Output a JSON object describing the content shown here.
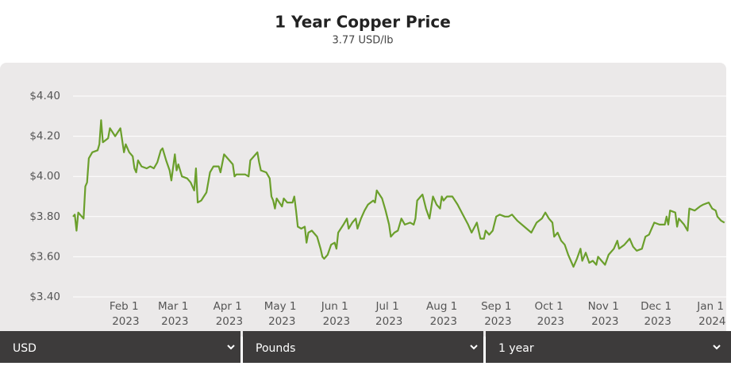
{
  "chart_data": {
    "type": "line",
    "title": "1 Year Copper Price",
    "subtitle": "3.77 USD/lb",
    "x": [
      "2023-01-02",
      "2023-01-03",
      "2023-01-04",
      "2023-01-05",
      "2023-01-08",
      "2023-01-09",
      "2023-01-10",
      "2023-01-11",
      "2023-01-13",
      "2023-01-16",
      "2023-01-17",
      "2023-01-18",
      "2023-01-19",
      "2023-01-22",
      "2023-01-23",
      "2023-01-26",
      "2023-01-29",
      "2023-01-31",
      "2023-02-01",
      "2023-02-03",
      "2023-02-05",
      "2023-02-06",
      "2023-02-07",
      "2023-02-08",
      "2023-02-10",
      "2023-02-13",
      "2023-02-15",
      "2023-02-17",
      "2023-02-19",
      "2023-02-21",
      "2023-02-22",
      "2023-02-24",
      "2023-02-26",
      "2023-02-27",
      "2023-03-01",
      "2023-03-02",
      "2023-03-03",
      "2023-03-05",
      "2023-03-08",
      "2023-03-10",
      "2023-03-12",
      "2023-03-13",
      "2023-03-14",
      "2023-03-16",
      "2023-03-19",
      "2023-03-21",
      "2023-03-23",
      "2023-03-26",
      "2023-03-27",
      "2023-03-29",
      "2023-03-31",
      "2023-04-03",
      "2023-04-04",
      "2023-04-05",
      "2023-04-07",
      "2023-04-10",
      "2023-04-12",
      "2023-04-13",
      "2023-04-15",
      "2023-04-17",
      "2023-04-18",
      "2023-04-19",
      "2023-04-22",
      "2023-04-24",
      "2023-04-25",
      "2023-04-26",
      "2023-04-27",
      "2023-04-28",
      "2023-05-01",
      "2023-05-02",
      "2023-05-04",
      "2023-05-07",
      "2023-05-08",
      "2023-05-09",
      "2023-05-10",
      "2023-05-12",
      "2023-05-14",
      "2023-05-15",
      "2023-05-16",
      "2023-05-18",
      "2023-05-21",
      "2023-05-23",
      "2023-05-24",
      "2023-05-25",
      "2023-05-27",
      "2023-05-29",
      "2023-05-31",
      "2023-06-01",
      "2023-06-02",
      "2023-06-05",
      "2023-06-07",
      "2023-06-08",
      "2023-06-10",
      "2023-06-12",
      "2023-06-13",
      "2023-06-15",
      "2023-06-17",
      "2023-06-19",
      "2023-06-22",
      "2023-06-23",
      "2023-06-24",
      "2023-06-27",
      "2023-06-29",
      "2023-07-01",
      "2023-07-02",
      "2023-07-04",
      "2023-07-06",
      "2023-07-08",
      "2023-07-10",
      "2023-07-13",
      "2023-07-15",
      "2023-07-16",
      "2023-07-17",
      "2023-07-19",
      "2023-07-20",
      "2023-07-22",
      "2023-07-24",
      "2023-07-26",
      "2023-07-28",
      "2023-07-30",
      "2023-07-31",
      "2023-08-01",
      "2023-08-03",
      "2023-08-06",
      "2023-08-09",
      "2023-08-12",
      "2023-08-15",
      "2023-08-17",
      "2023-08-20",
      "2023-08-22",
      "2023-08-24",
      "2023-08-25",
      "2023-08-27",
      "2023-08-29",
      "2023-08-31",
      "2023-09-02",
      "2023-09-05",
      "2023-09-07",
      "2023-09-09",
      "2023-09-12",
      "2023-09-16",
      "2023-09-20",
      "2023-09-23",
      "2023-09-26",
      "2023-09-28",
      "2023-09-30",
      "2023-10-02",
      "2023-10-03",
      "2023-10-05",
      "2023-10-07",
      "2023-10-09",
      "2023-10-11",
      "2023-10-13",
      "2023-10-14",
      "2023-10-16",
      "2023-10-18",
      "2023-10-19",
      "2023-10-21",
      "2023-10-23",
      "2023-10-25",
      "2023-10-27",
      "2023-10-28",
      "2023-10-30",
      "2023-11-01",
      "2023-11-03",
      "2023-11-06",
      "2023-11-08",
      "2023-11-09",
      "2023-11-12",
      "2023-11-15",
      "2023-11-17",
      "2023-11-19",
      "2023-11-22",
      "2023-11-24",
      "2023-11-26",
      "2023-11-29",
      "2023-12-02",
      "2023-12-05",
      "2023-12-06",
      "2023-12-07",
      "2023-12-08",
      "2023-12-11",
      "2023-12-12",
      "2023-12-13",
      "2023-12-16",
      "2023-12-18",
      "2023-12-19",
      "2023-12-22",
      "2023-12-25",
      "2023-12-27",
      "2023-12-30",
      "2024-01-01",
      "2024-01-03",
      "2024-01-04",
      "2024-01-06",
      "2024-01-08"
    ],
    "series": [
      {
        "name": "Copper",
        "color": "#6b9f2c",
        "values": [
          3.8,
          3.81,
          3.73,
          3.82,
          3.79,
          3.95,
          3.97,
          4.09,
          4.12,
          4.13,
          4.16,
          4.28,
          4.17,
          4.19,
          4.24,
          4.2,
          4.24,
          4.12,
          4.16,
          4.12,
          4.1,
          4.04,
          4.02,
          4.08,
          4.05,
          4.04,
          4.05,
          4.04,
          4.07,
          4.13,
          4.14,
          4.08,
          4.03,
          3.98,
          4.11,
          4.03,
          4.06,
          4.0,
          3.99,
          3.97,
          3.93,
          4.04,
          3.87,
          3.88,
          3.92,
          4.02,
          4.05,
          4.05,
          4.02,
          4.11,
          4.09,
          4.06,
          4.0,
          4.01,
          4.01,
          4.01,
          4.0,
          4.08,
          4.1,
          4.12,
          4.07,
          4.03,
          4.02,
          3.99,
          3.9,
          3.88,
          3.84,
          3.89,
          3.85,
          3.89,
          3.87,
          3.87,
          3.9,
          3.83,
          3.75,
          3.74,
          3.75,
          3.67,
          3.72,
          3.73,
          3.7,
          3.64,
          3.6,
          3.59,
          3.61,
          3.66,
          3.67,
          3.64,
          3.72,
          3.76,
          3.79,
          3.74,
          3.77,
          3.79,
          3.74,
          3.79,
          3.83,
          3.86,
          3.88,
          3.87,
          3.93,
          3.89,
          3.83,
          3.76,
          3.7,
          3.72,
          3.73,
          3.79,
          3.76,
          3.77,
          3.76,
          3.79,
          3.88,
          3.9,
          3.91,
          3.84,
          3.79,
          3.9,
          3.86,
          3.84,
          3.9,
          3.88,
          3.9,
          3.9,
          3.86,
          3.81,
          3.76,
          3.72,
          3.77,
          3.69,
          3.69,
          3.73,
          3.71,
          3.73,
          3.8,
          3.81,
          3.8,
          3.8,
          3.81,
          3.78,
          3.75,
          3.72,
          3.77,
          3.79,
          3.82,
          3.79,
          3.77,
          3.7,
          3.72,
          3.68,
          3.66,
          3.61,
          3.57,
          3.55,
          3.59,
          3.64,
          3.58,
          3.62,
          3.57,
          3.58,
          3.56,
          3.6,
          3.58,
          3.56,
          3.61,
          3.64,
          3.68,
          3.64,
          3.66,
          3.69,
          3.65,
          3.63,
          3.64,
          3.7,
          3.71,
          3.77,
          3.76,
          3.76,
          3.8,
          3.76,
          3.83,
          3.82,
          3.75,
          3.79,
          3.76,
          3.73,
          3.84,
          3.83,
          3.85,
          3.86,
          3.87,
          3.84,
          3.83,
          3.8,
          3.78,
          3.77
        ]
      }
    ],
    "xlim": [
      "2023-01-02",
      "2024-01-09"
    ],
    "xticks": [
      {
        "value": "2023-02-01",
        "label": "Feb 1 2023"
      },
      {
        "value": "2023-03-01",
        "label": "Mar 1 2023"
      },
      {
        "value": "2023-04-01",
        "label": "Apr 1 2023"
      },
      {
        "value": "2023-05-01",
        "label": "May 1 2023"
      },
      {
        "value": "2023-06-01",
        "label": "Jun 1 2023"
      },
      {
        "value": "2023-07-01",
        "label": "Jul 1 2023"
      },
      {
        "value": "2023-08-01",
        "label": "Aug 1 2023"
      },
      {
        "value": "2023-09-01",
        "label": "Sep 1 2023"
      },
      {
        "value": "2023-10-01",
        "label": "Oct 1 2023"
      },
      {
        "value": "2023-11-01",
        "label": "Nov 1 2023"
      },
      {
        "value": "2023-12-01",
        "label": "Dec 1 2023"
      },
      {
        "value": "2024-01-01",
        "label": "Jan 1 2024"
      }
    ],
    "ylim": [
      3.4,
      4.4
    ],
    "yticks": [
      {
        "value": 3.4,
        "label": "$3.40"
      },
      {
        "value": 3.6,
        "label": "$3.60"
      },
      {
        "value": 3.8,
        "label": "$3.80"
      },
      {
        "value": 4.0,
        "label": "$4.00"
      },
      {
        "value": 4.2,
        "label": "$4.20"
      },
      {
        "value": 4.4,
        "label": "$4.40"
      }
    ],
    "grid": true
  },
  "controls": [
    "USD",
    "Pounds",
    "1 year"
  ]
}
